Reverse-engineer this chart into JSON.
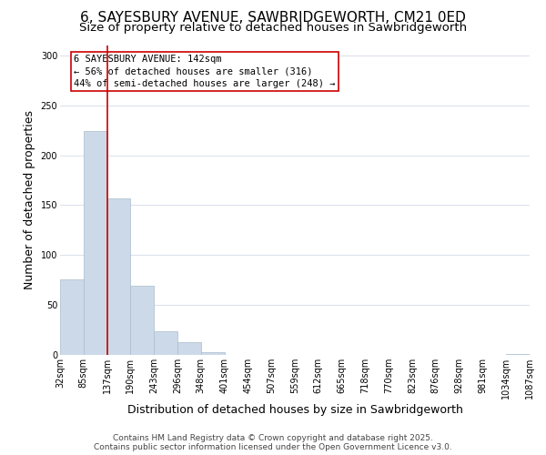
{
  "title": "6, SAYESBURY AVENUE, SAWBRIDGEWORTH, CM21 0ED",
  "subtitle": "Size of property relative to detached houses in Sawbridgeworth",
  "xlabel": "Distribution of detached houses by size in Sawbridgeworth",
  "ylabel": "Number of detached properties",
  "bar_values": [
    76,
    224,
    157,
    69,
    24,
    13,
    3,
    0,
    0,
    0,
    0,
    0,
    0,
    0,
    0,
    0,
    0,
    0,
    0,
    1
  ],
  "bin_labels": [
    "32sqm",
    "85sqm",
    "137sqm",
    "190sqm",
    "243sqm",
    "296sqm",
    "348sqm",
    "401sqm",
    "454sqm",
    "507sqm",
    "559sqm",
    "612sqm",
    "665sqm",
    "718sqm",
    "770sqm",
    "823sqm",
    "876sqm",
    "928sqm",
    "981sqm",
    "1034sqm",
    "1087sqm"
  ],
  "bar_color": "#ccd9e8",
  "bar_edge_color": "#aabccc",
  "grid_color": "#d8e0ec",
  "red_line_color": "#cc0000",
  "annotation_box_text": "6 SAYESBURY AVENUE: 142sqm\n← 56% of detached houses are smaller (316)\n44% of semi-detached houses are larger (248) →",
  "ylim": [
    0,
    310
  ],
  "yticks": [
    0,
    50,
    100,
    150,
    200,
    250,
    300
  ],
  "footer_line1": "Contains HM Land Registry data © Crown copyright and database right 2025.",
  "footer_line2": "Contains public sector information licensed under the Open Government Licence v3.0.",
  "title_fontsize": 11,
  "subtitle_fontsize": 9.5,
  "axis_label_fontsize": 9,
  "tick_fontsize": 7,
  "annotation_fontsize": 7.5,
  "footer_fontsize": 6.5
}
